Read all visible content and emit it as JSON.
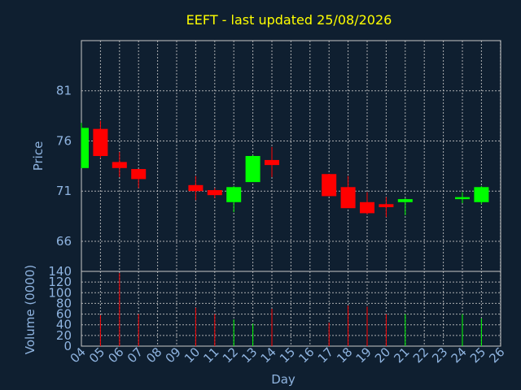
{
  "chart_data": {
    "type": "candlestick",
    "title": "EEFT - last updated 25/08/2026",
    "xlabel": "Day",
    "x_ticks": [
      "04",
      "05",
      "06",
      "07",
      "08",
      "09",
      "10",
      "11",
      "12",
      "13",
      "14",
      "15",
      "16",
      "17",
      "18",
      "19",
      "20",
      "21",
      "22",
      "23",
      "24",
      "25",
      "26"
    ],
    "price": {
      "ylabel": "Price",
      "ylim": [
        63,
        86
      ],
      "y_ticks": [
        66,
        71,
        76,
        81
      ],
      "up_color": "#00ff00",
      "down_color": "#ff0000"
    },
    "volume": {
      "ylabel": "Volume (0000)",
      "ylim": [
        0,
        140
      ],
      "y_ticks": [
        0,
        20,
        40,
        60,
        80,
        100,
        120,
        140
      ]
    },
    "candles": [
      {
        "day": "04",
        "open": 73.3,
        "high": 77.8,
        "low": 73.3,
        "close": 77.3,
        "volume": 0
      },
      {
        "day": "05",
        "open": 77.2,
        "high": 78.0,
        "low": 74.3,
        "close": 74.5,
        "volume": 58
      },
      {
        "day": "06",
        "open": 73.9,
        "high": 74.9,
        "low": 72.4,
        "close": 73.3,
        "volume": 137
      },
      {
        "day": "07",
        "open": 73.2,
        "high": 73.2,
        "low": 71.3,
        "close": 72.2,
        "volume": 60
      },
      {
        "day": "10",
        "open": 71.6,
        "high": 72.5,
        "low": 70.1,
        "close": 71.0,
        "volume": 72
      },
      {
        "day": "11",
        "open": 71.1,
        "high": 71.3,
        "low": 70.3,
        "close": 70.6,
        "volume": 60
      },
      {
        "day": "12",
        "open": 69.9,
        "high": 71.5,
        "low": 68.9,
        "close": 71.4,
        "volume": 50
      },
      {
        "day": "13",
        "open": 71.9,
        "high": 74.6,
        "low": 71.9,
        "close": 74.5,
        "volume": 42
      },
      {
        "day": "14",
        "open": 74.1,
        "high": 75.4,
        "low": 72.4,
        "close": 73.6,
        "volume": 70
      },
      {
        "day": "17",
        "open": 72.7,
        "high": 72.7,
        "low": 70.5,
        "close": 70.5,
        "volume": 44
      },
      {
        "day": "18",
        "open": 71.4,
        "high": 72.5,
        "low": 69.3,
        "close": 69.3,
        "volume": 76
      },
      {
        "day": "19",
        "open": 69.9,
        "high": 70.9,
        "low": 68.7,
        "close": 68.8,
        "volume": 74
      },
      {
        "day": "20",
        "open": 69.7,
        "high": 70.4,
        "low": 68.4,
        "close": 69.4,
        "volume": 60
      },
      {
        "day": "21",
        "open": 69.9,
        "high": 70.3,
        "low": 68.6,
        "close": 70.2,
        "volume": 60
      },
      {
        "day": "24",
        "open": 70.2,
        "high": 70.9,
        "low": 69.8,
        "close": 70.4,
        "volume": 60
      },
      {
        "day": "25",
        "open": 69.9,
        "high": 71.5,
        "low": 69.7,
        "close": 71.4,
        "volume": 52
      }
    ]
  }
}
